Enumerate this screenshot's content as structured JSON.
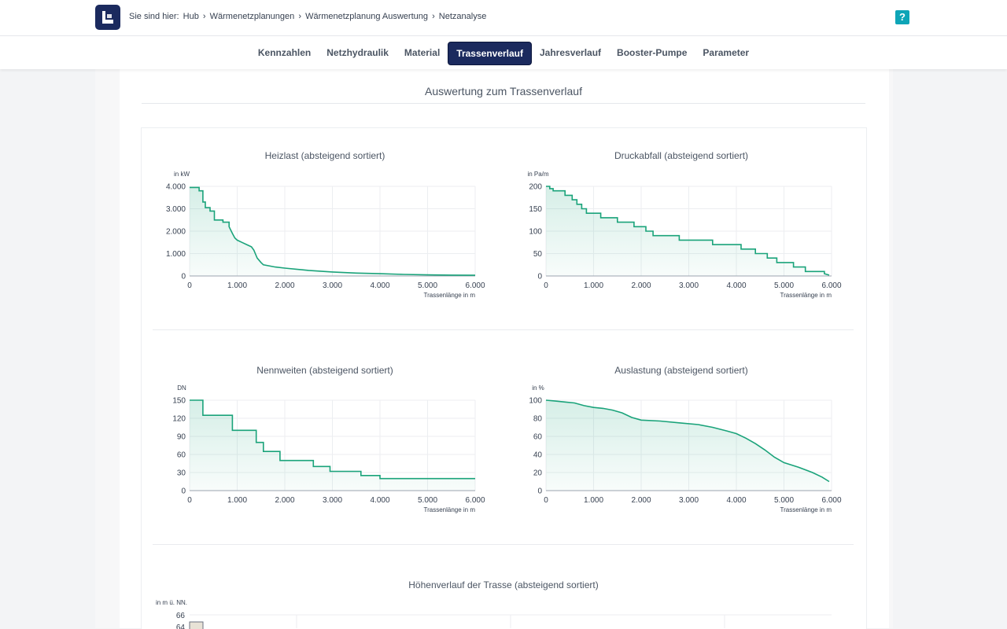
{
  "header": {
    "breadcrumb": [
      "Sie sind hier:",
      "Hub",
      "›",
      "Wärmenetzplanungen",
      "›",
      "Wärmenetzplanung Auswertung",
      "›",
      "Netzanalyse"
    ],
    "help_label": "?"
  },
  "tabs": [
    {
      "label": "Kennzahlen",
      "active": false
    },
    {
      "label": "Netzhydraulik",
      "active": false
    },
    {
      "label": "Material",
      "active": false
    },
    {
      "label": "Trassenverlauf",
      "active": true
    },
    {
      "label": "Jahresverlauf",
      "active": false
    },
    {
      "label": "Booster-Pumpe",
      "active": false
    },
    {
      "label": "Parameter",
      "active": false
    }
  ],
  "section_title": "Auswertung zum Trassenverlauf",
  "colors": {
    "brand": "#1b2a5e",
    "accent": "#0ea5b7",
    "line": "#1aa37a"
  },
  "chart_data": [
    {
      "type": "area",
      "title": "Heizlast (absteigend sortiert)",
      "ylabel": "in kW",
      "xlabel": "Trassenlänge in m",
      "xlim": [
        0,
        6000
      ],
      "ylim": [
        0,
        4000
      ],
      "xticks": [
        0,
        1000,
        2000,
        3000,
        4000,
        5000,
        6000
      ],
      "xtick_labels": [
        "0",
        "1.000",
        "2.000",
        "3.000",
        "4.000",
        "5.000",
        "6.000"
      ],
      "yticks": [
        0,
        1000,
        2000,
        3000,
        4000
      ],
      "ytick_labels": [
        "0",
        "1.000",
        "2.000",
        "3.000",
        "4.000"
      ],
      "x": [
        0,
        200,
        200,
        280,
        280,
        330,
        330,
        430,
        430,
        520,
        520,
        700,
        700,
        830,
        830,
        900,
        950,
        1000,
        1100,
        1200,
        1300,
        1350,
        1380,
        1420,
        1500,
        1550,
        1800,
        2000,
        2500,
        3000,
        3500,
        4000,
        4500,
        5000,
        5500,
        6000
      ],
      "y": [
        3950,
        3950,
        3800,
        3800,
        3300,
        3300,
        3050,
        3050,
        2900,
        2900,
        2500,
        2500,
        2400,
        2400,
        2200,
        1900,
        1700,
        1600,
        1500,
        1400,
        1300,
        1150,
        1000,
        800,
        600,
        500,
        400,
        350,
        250,
        180,
        130,
        100,
        70,
        50,
        40,
        30
      ]
    },
    {
      "type": "area",
      "title": "Druckabfall (absteigend sortiert)",
      "ylabel": "in Pa/m",
      "xlabel": "Trassenlänge in m",
      "xlim": [
        0,
        6000
      ],
      "ylim": [
        0,
        200
      ],
      "xticks": [
        0,
        1000,
        2000,
        3000,
        4000,
        5000,
        6000
      ],
      "xtick_labels": [
        "0",
        "1.000",
        "2.000",
        "3.000",
        "4.000",
        "5.000",
        "6.000"
      ],
      "yticks": [
        0,
        50,
        100,
        150,
        200
      ],
      "ytick_labels": [
        "0",
        "50",
        "100",
        "150",
        "200"
      ],
      "x": [
        0,
        80,
        80,
        150,
        150,
        400,
        400,
        550,
        550,
        650,
        650,
        750,
        750,
        850,
        850,
        1150,
        1150,
        1500,
        1500,
        1850,
        1850,
        2100,
        2100,
        2250,
        2250,
        2800,
        2800,
        3500,
        3500,
        4100,
        4100,
        4400,
        4400,
        4650,
        4650,
        4850,
        4850,
        5200,
        5200,
        5450,
        5450,
        5850,
        5850,
        5950
      ],
      "y": [
        200,
        200,
        195,
        195,
        190,
        190,
        180,
        180,
        170,
        170,
        160,
        160,
        150,
        150,
        140,
        140,
        130,
        130,
        120,
        120,
        110,
        110,
        100,
        100,
        90,
        90,
        80,
        80,
        70,
        70,
        60,
        60,
        50,
        50,
        40,
        40,
        30,
        30,
        20,
        20,
        10,
        10,
        5,
        2
      ]
    },
    {
      "type": "area",
      "title": "Nennweiten (absteigend sortiert)",
      "ylabel": "DN",
      "xlabel": "Trassenlänge in m",
      "xlim": [
        0,
        6000
      ],
      "ylim": [
        0,
        150
      ],
      "xticks": [
        0,
        1000,
        2000,
        3000,
        4000,
        5000,
        6000
      ],
      "xtick_labels": [
        "0",
        "1.000",
        "2.000",
        "3.000",
        "4.000",
        "5.000",
        "6.000"
      ],
      "yticks": [
        0,
        30,
        60,
        90,
        120,
        150
      ],
      "ytick_labels": [
        "0",
        "30",
        "60",
        "90",
        "120",
        "150"
      ],
      "x": [
        0,
        280,
        280,
        900,
        900,
        1400,
        1400,
        1550,
        1550,
        1900,
        1900,
        2600,
        2600,
        2950,
        2950,
        3600,
        3600,
        4000,
        4000,
        6000
      ],
      "y": [
        150,
        150,
        125,
        125,
        100,
        100,
        80,
        80,
        65,
        65,
        50,
        50,
        40,
        40,
        32,
        32,
        25,
        25,
        20,
        20
      ]
    },
    {
      "type": "area",
      "title": "Auslastung (absteigend sortiert)",
      "ylabel": "in %",
      "xlabel": "Trassenlänge in m",
      "xlim": [
        0,
        6000
      ],
      "ylim": [
        0,
        100
      ],
      "xticks": [
        0,
        1000,
        2000,
        3000,
        4000,
        5000,
        6000
      ],
      "xtick_labels": [
        "0",
        "1.000",
        "2.000",
        "3.000",
        "4.000",
        "5.000",
        "6.000"
      ],
      "yticks": [
        0,
        20,
        40,
        60,
        80,
        100
      ],
      "ytick_labels": [
        "0",
        "20",
        "40",
        "60",
        "80",
        "100"
      ],
      "x": [
        0,
        200,
        400,
        600,
        800,
        1000,
        1200,
        1400,
        1600,
        1800,
        2000,
        2400,
        2800,
        3200,
        3500,
        3800,
        4000,
        4200,
        4400,
        4600,
        4800,
        5000,
        5300,
        5600,
        5800,
        5950
      ],
      "y": [
        100,
        99,
        98,
        97,
        94,
        92,
        91,
        89,
        86,
        81,
        78,
        77,
        75,
        73,
        70,
        66,
        63,
        58,
        52,
        45,
        37,
        31,
        26,
        20,
        15,
        10
      ]
    },
    {
      "type": "bar",
      "title": "Höhenverlauf der Trasse (absteigend sortiert)",
      "ylabel": "in m ü. NN.",
      "yticks_visible": [
        "66",
        "64"
      ]
    }
  ]
}
